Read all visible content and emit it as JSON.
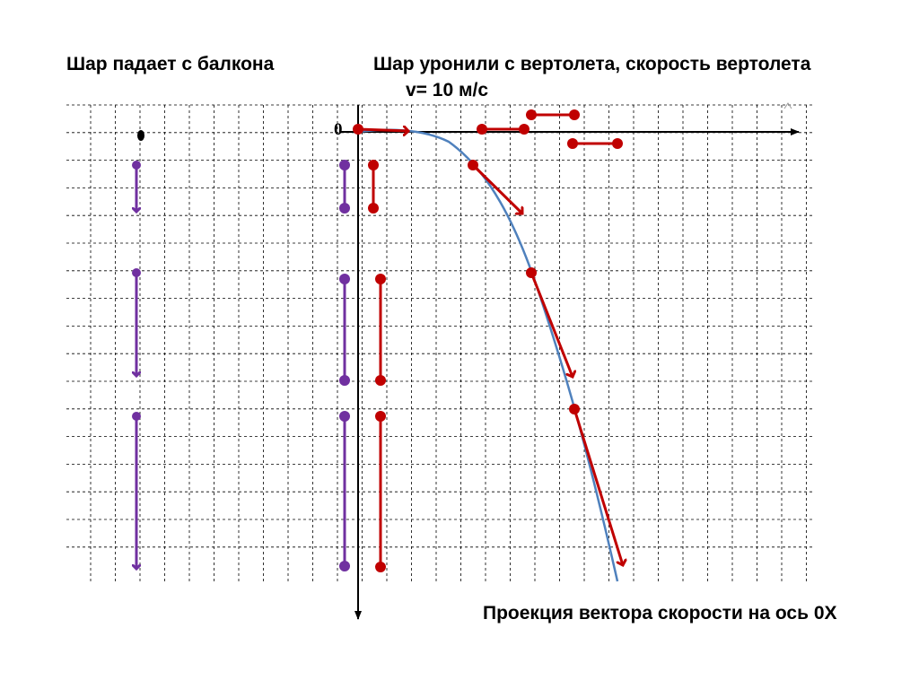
{
  "texts": {
    "left_title": "Шар падает с балкона",
    "right_title": "Шар уронили с вертолета,  скорость вертолета",
    "speed": "v= 10 м/с",
    "bottom_caption": "Проекция вектора скорости на ось 0X",
    "origin": "0"
  },
  "colors": {
    "grid": "#000000",
    "axis": "#000000",
    "purple": "#7030a0",
    "red": "#c00000",
    "curve": "#4f81bd"
  },
  "icons": {
    "purple_arrow": "down-arrow-icon",
    "red_arrow": "velocity-arrow-icon"
  }
}
